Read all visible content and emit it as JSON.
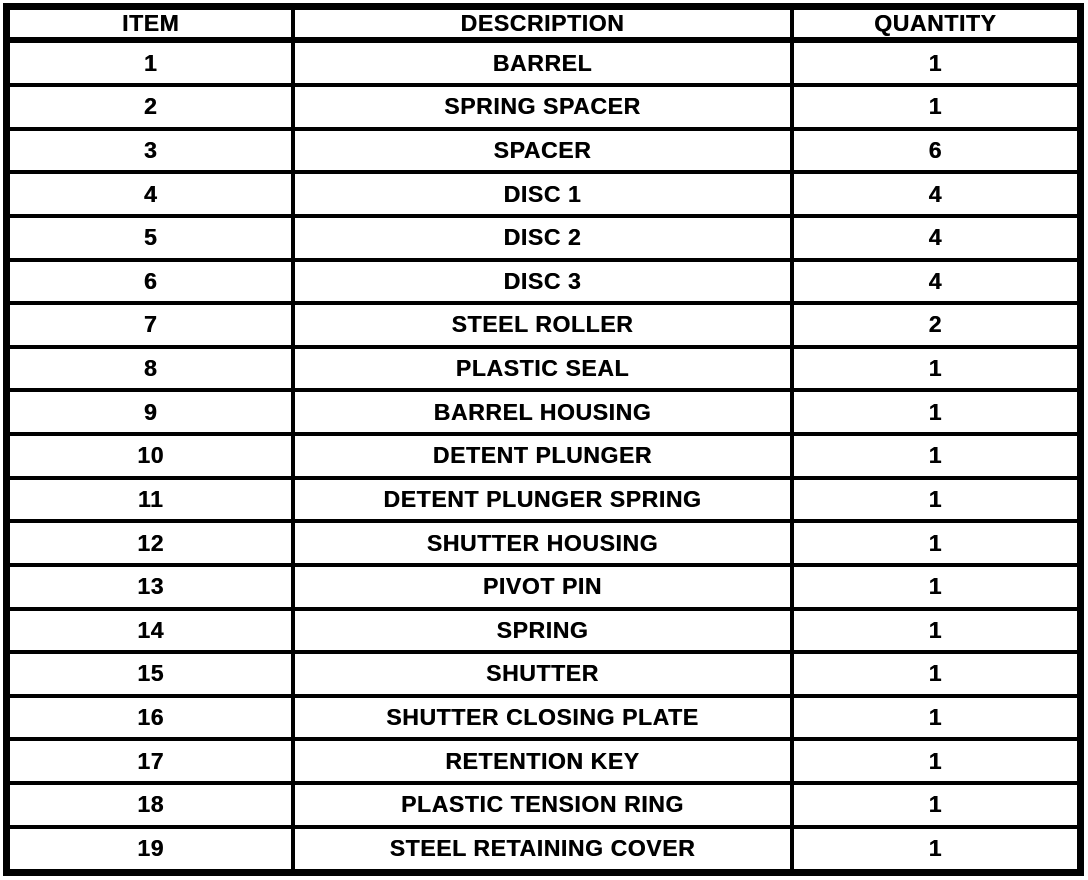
{
  "colors": {
    "background": "#ffffff",
    "border": "#000000",
    "text": "#000000"
  },
  "table": {
    "headers": [
      "ITEM",
      "DESCRIPTION",
      "QUANTITY"
    ],
    "rows": [
      {
        "item": "1",
        "description": "BARREL",
        "quantity": "1"
      },
      {
        "item": "2",
        "description": "SPRING SPACER",
        "quantity": "1"
      },
      {
        "item": "3",
        "description": "SPACER",
        "quantity": "6"
      },
      {
        "item": "4",
        "description": "DISC 1",
        "quantity": "4"
      },
      {
        "item": "5",
        "description": "DISC 2",
        "quantity": "4"
      },
      {
        "item": "6",
        "description": "DISC 3",
        "quantity": "4"
      },
      {
        "item": "7",
        "description": "STEEL ROLLER",
        "quantity": "2"
      },
      {
        "item": "8",
        "description": "PLASTIC SEAL",
        "quantity": "1"
      },
      {
        "item": "9",
        "description": "BARREL HOUSING",
        "quantity": "1"
      },
      {
        "item": "10",
        "description": "DETENT PLUNGER",
        "quantity": "1"
      },
      {
        "item": "11",
        "description": "DETENT PLUNGER SPRING",
        "quantity": "1"
      },
      {
        "item": "12",
        "description": "SHUTTER HOUSING",
        "quantity": "1"
      },
      {
        "item": "13",
        "description": "PIVOT PIN",
        "quantity": "1"
      },
      {
        "item": "14",
        "description": "SPRING",
        "quantity": "1"
      },
      {
        "item": "15",
        "description": "SHUTTER",
        "quantity": "1"
      },
      {
        "item": "16",
        "description": "SHUTTER CLOSING PLATE",
        "quantity": "1"
      },
      {
        "item": "17",
        "description": "RETENTION KEY",
        "quantity": "1"
      },
      {
        "item": "18",
        "description": "PLASTIC TENSION RING",
        "quantity": "1"
      },
      {
        "item": "19",
        "description": "STEEL RETAINING COVER",
        "quantity": "1"
      }
    ]
  }
}
